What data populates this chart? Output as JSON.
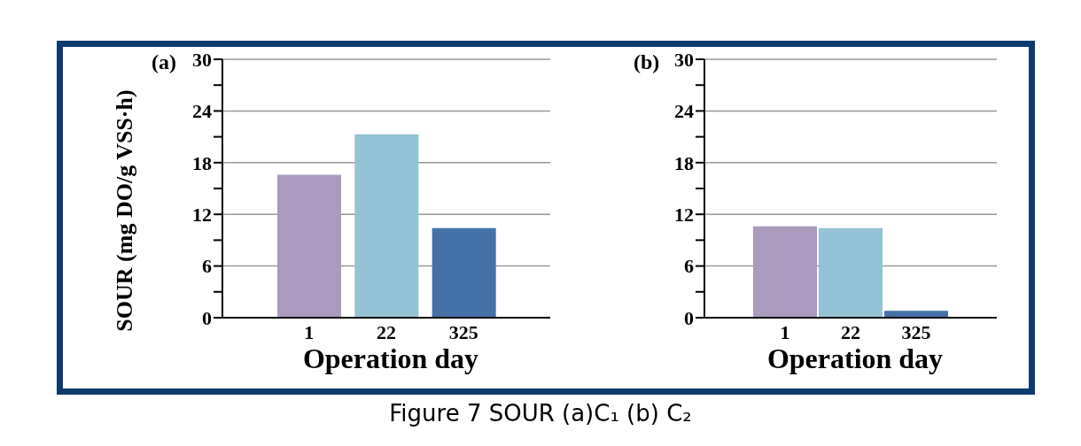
{
  "chart_data": [
    {
      "type": "bar",
      "title": "(a)",
      "ylabel": "SOUR (mg DO/g VSS·h)",
      "xlabel": "Operation day",
      "categories": [
        "1",
        "22",
        "325"
      ],
      "values": [
        16.6,
        21.3,
        10.4
      ],
      "colors": [
        "#a99abe",
        "#93c3d4",
        "#4472a8"
      ],
      "ylim": [
        0,
        30
      ],
      "yticks": [
        0,
        {
          "value": 3,
          "label": null
        },
        6,
        {
          "value": 9,
          "label": null
        },
        12,
        {
          "value": 15,
          "label": null
        },
        18,
        {
          "value": 21,
          "label": null
        },
        24,
        {
          "value": 27,
          "label": null
        },
        30
      ],
      "grid": "y",
      "legend": false,
      "annotations": [
        "Figure 7 SOUR (a)C₁ (b) C₂"
      ]
    },
    {
      "type": "bar",
      "title": "(b)",
      "xlabel": "Operation day",
      "categories": [
        "1",
        "22",
        "325"
      ],
      "values": [
        10.6,
        10.4,
        0.8
      ],
      "colors": [
        "#a99abe",
        "#93c3d4",
        "#4472a8"
      ],
      "ylim": [
        0,
        30
      ],
      "yticks": [
        0,
        {
          "value": 3,
          "label": null
        },
        6,
        {
          "value": 9,
          "label": null
        },
        12,
        {
          "value": 15,
          "label": null
        },
        18,
        {
          "value": 21,
          "label": null
        },
        24,
        {
          "value": 27,
          "label": null
        },
        30
      ],
      "grid": "y",
      "legend": false
    }
  ]
}
